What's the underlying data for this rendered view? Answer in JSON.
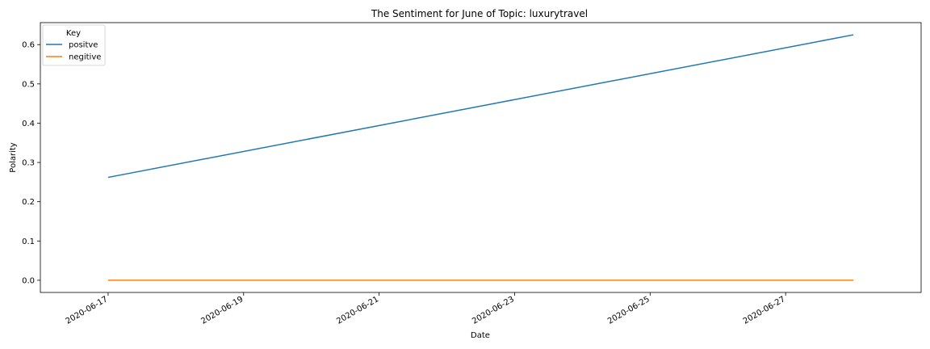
{
  "chart_data": {
    "type": "line",
    "title": "The Sentiment for June of Topic: luxurytravel",
    "xlabel": "Date",
    "ylabel": "Polarity",
    "x": [
      "2020-06-17",
      "2020-06-28"
    ],
    "series": [
      {
        "name": "positve",
        "color": "#1f77b4",
        "values": [
          0.262,
          0.625
        ]
      },
      {
        "name": "negitive",
        "color": "#ff7f0e",
        "values": [
          0.0,
          0.0
        ]
      }
    ],
    "xticks": [
      "2020-06-17",
      "2020-06-19",
      "2020-06-21",
      "2020-06-23",
      "2020-06-25",
      "2020-06-27"
    ],
    "yticks": [
      0.0,
      0.1,
      0.2,
      0.3,
      0.4,
      0.5,
      0.6
    ],
    "xlim": [
      "2020-06-16",
      "2020-06-29"
    ],
    "ylim": [
      -0.031,
      0.656
    ],
    "grid": false,
    "legend": {
      "title": "Key",
      "placement": "top-left"
    }
  }
}
